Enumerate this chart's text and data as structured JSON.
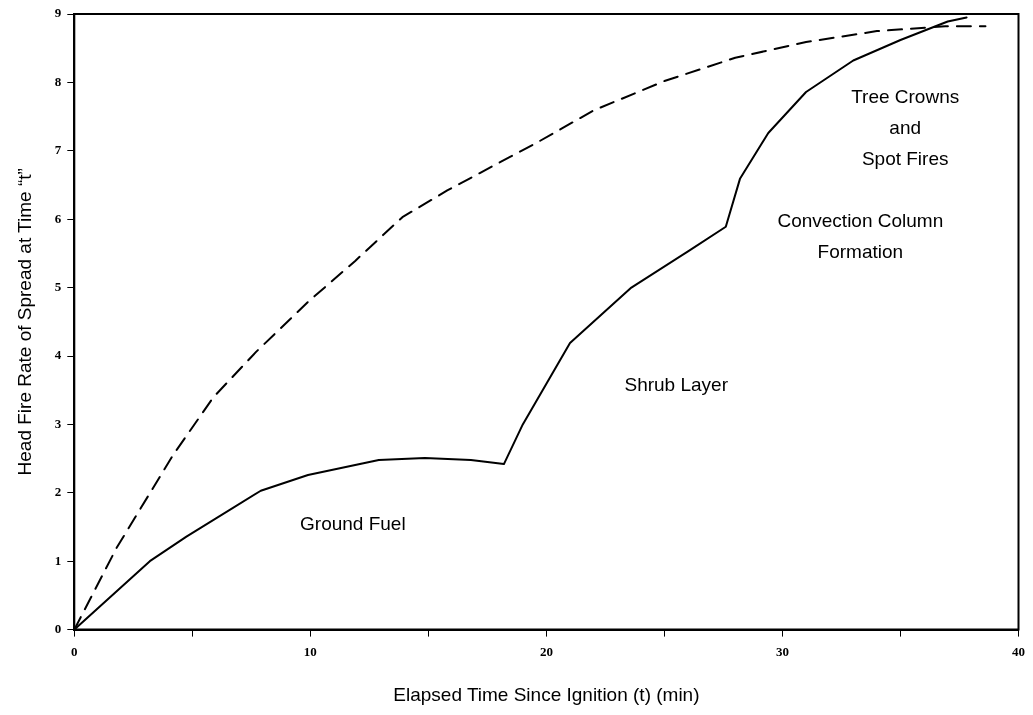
{
  "chart_data": {
    "type": "line",
    "xlabel": "Elapsed Time Since Ignition (t) (min)",
    "ylabel": "Head Fire Rate of Spread at Time “t”",
    "xlim": [
      0,
      40
    ],
    "ylim": [
      0,
      9
    ],
    "xticks": [
      0,
      {
        "value": 5,
        "label": null
      },
      10,
      {
        "value": 15,
        "label": null
      },
      20,
      {
        "value": 25,
        "label": null
      },
      30,
      {
        "value": 35,
        "label": null
      },
      40
    ],
    "yticks": [
      0,
      1,
      2,
      3,
      4,
      5,
      6,
      7,
      8,
      9
    ],
    "grid": false,
    "legend": false,
    "marker": "none",
    "series": [
      {
        "color": "#000000",
        "line_style": "solid",
        "x": [
          0,
          3.2,
          4.75,
          7.9,
          9.9,
          12.9,
          14.85,
          16.8,
          18.2,
          19.0,
          21.0,
          23.6,
          26.0,
          27.6,
          28.2,
          29.4,
          31.0,
          33.0,
          35.0,
          37.0,
          37.8
        ],
        "values": [
          0,
          1.0,
          1.36,
          2.03,
          2.26,
          2.48,
          2.51,
          2.48,
          2.42,
          3.0,
          4.19,
          5.0,
          5.53,
          5.89,
          6.59,
          7.26,
          7.86,
          8.32,
          8.62,
          8.89,
          8.95
        ]
      },
      {
        "color": "#000000",
        "line_style": "dashed",
        "x": [
          0,
          1.8,
          4.2,
          5.9,
          7.7,
          9.9,
          11.9,
          13.9,
          15.8,
          17.8,
          19.6,
          22.0,
          25.0,
          28.0,
          31.0,
          34.0,
          36.9,
          38.6
        ],
        "values": [
          0,
          1.2,
          2.56,
          3.4,
          4.06,
          4.79,
          5.39,
          6.03,
          6.42,
          6.79,
          7.12,
          7.59,
          8.02,
          8.36,
          8.59,
          8.75,
          8.82,
          8.82
        ]
      }
    ],
    "annotations": [
      "Ground Fuel",
      "Shrub Layer",
      "Convection Column\nFormation",
      "Tree Crowns\nand\nSpot Fires"
    ]
  }
}
